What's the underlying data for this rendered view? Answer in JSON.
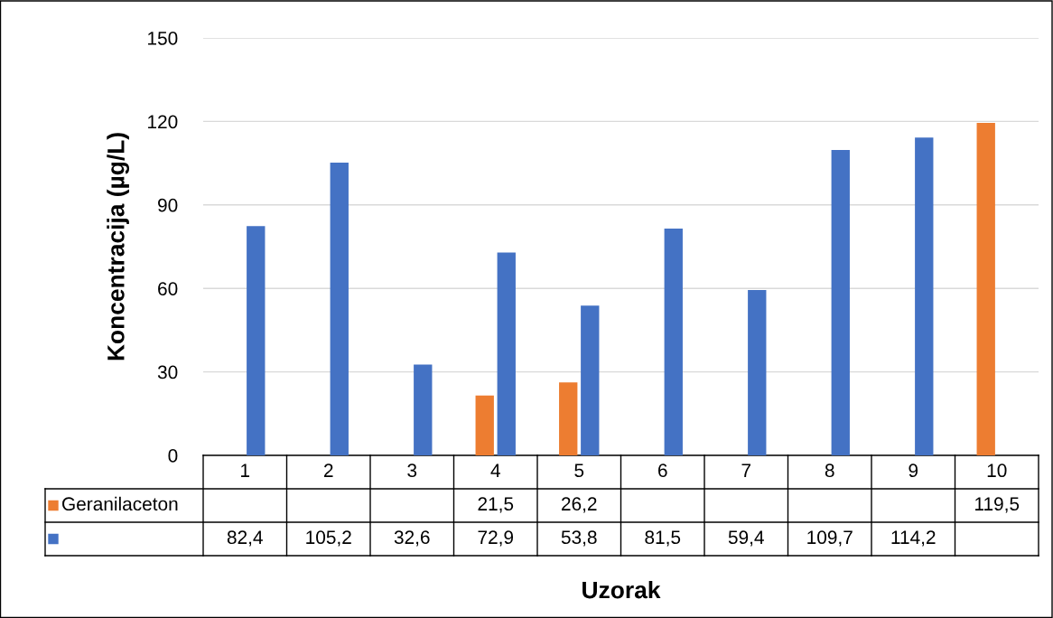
{
  "chart_data": {
    "type": "bar",
    "xlabel": "Uzorak",
    "ylabel": "Koncentracija (µg/L)",
    "categories": [
      "1",
      "2",
      "3",
      "4",
      "5",
      "6",
      "7",
      "8",
      "9",
      "10"
    ],
    "series": [
      {
        "name": "Geranilaceton",
        "color": "#ed7d31",
        "values": [
          null,
          null,
          null,
          21.5,
          26.2,
          null,
          null,
          null,
          null,
          119.5
        ],
        "value_labels": [
          null,
          null,
          null,
          "21,5",
          "26,2",
          null,
          null,
          null,
          null,
          "119,5"
        ]
      },
      {
        "color": "#4472c4",
        "values": [
          82.4,
          105.2,
          32.6,
          72.9,
          53.8,
          81.5,
          59.4,
          109.7,
          114.2,
          null
        ],
        "value_labels": [
          "82,4",
          "105,2",
          "32,6",
          "72,9",
          "53,8",
          "81,5",
          "59,4",
          "109,7",
          "114,2",
          null
        ]
      }
    ],
    "ylim": [
      0,
      150
    ],
    "yticks": [
      0,
      30,
      60,
      90,
      120,
      150
    ],
    "grid": "y",
    "legend": "bottom"
  }
}
